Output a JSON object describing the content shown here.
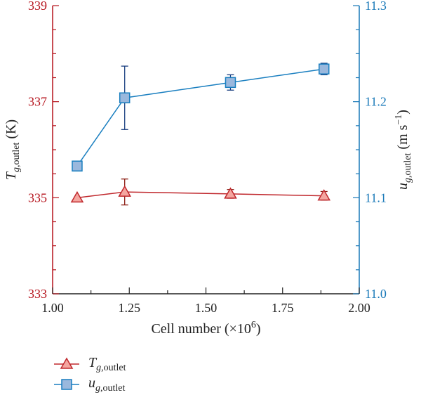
{
  "chart_data": {
    "type": "line",
    "xlabel": "Cell number (×10⁶)",
    "xlim": [
      1.0,
      2.0
    ],
    "x_ticks": [
      "1.00",
      "1.25",
      "1.50",
      "1.75",
      "2.00"
    ],
    "y_left": {
      "label": "T g,outlet (K)",
      "lim": [
        333,
        339
      ],
      "ticks": [
        "333",
        "335",
        "337",
        "339"
      ],
      "color": "#b5121b"
    },
    "y_right": {
      "label": "u g,outlet (m s⁻¹)",
      "lim": [
        11.0,
        11.3
      ],
      "ticks": [
        "11.0",
        "11.1",
        "11.2",
        "11.3"
      ],
      "color": "#1878b8"
    },
    "series": [
      {
        "name": "T g,outlet",
        "axis": "left",
        "marker": "triangle",
        "color": "#c0282d",
        "fill": "#f4a6a0",
        "x": [
          1.08,
          1.235,
          1.58,
          1.885
        ],
        "y": [
          335.0,
          335.12,
          335.08,
          335.04
        ],
        "err": [
          0,
          0.27,
          0.09,
          0.09
        ]
      },
      {
        "name": "u g,outlet",
        "axis": "right",
        "marker": "square",
        "color": "#1a7fc0",
        "fill": "#9ab8dd",
        "x": [
          1.08,
          1.235,
          1.58,
          1.885
        ],
        "y": [
          11.133,
          11.204,
          11.22,
          11.234
        ],
        "err": [
          0,
          0.033,
          0.008,
          0.006
        ]
      }
    ],
    "legend": {
      "placement": "below",
      "items": [
        {
          "base": "T",
          "sub": "g,outlet"
        },
        {
          "base": "u",
          "sub": "g,outlet"
        }
      ]
    },
    "grid": false
  }
}
